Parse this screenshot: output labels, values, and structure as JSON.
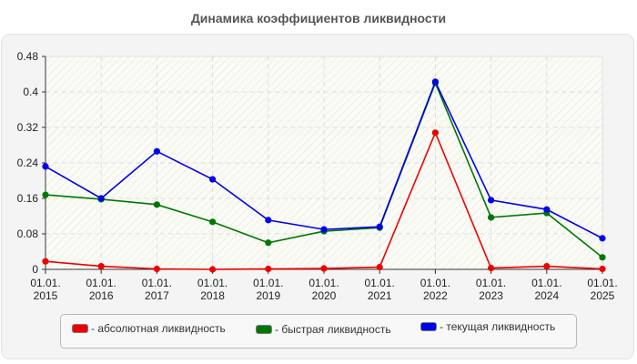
{
  "title": "Динамика коэффициентов ликвидности",
  "legend": [
    {
      "label": "- абсолютная ликвидность",
      "color": "#ee0000"
    },
    {
      "label": "- быстрая ликвидность",
      "color": "#007700"
    },
    {
      "label": "- текущая ликвидность",
      "color": "#0000ee"
    }
  ],
  "chart_data": {
    "type": "line",
    "title": "Динамика коэффициентов ликвидности",
    "xlabel": "",
    "ylabel": "",
    "categories": [
      "01.01.2015",
      "01.01.2016",
      "01.01.2017",
      "01.01.2018",
      "01.01.2019",
      "01.01.2020",
      "01.01.2021",
      "01.01.2022",
      "01.01.2023",
      "01.01.2024",
      "01.01.2025"
    ],
    "x_tick_labels": [
      [
        "01.01.",
        "2015"
      ],
      [
        "01.01.",
        "2016"
      ],
      [
        "01.01.",
        "2017"
      ],
      [
        "01.01.",
        "2018"
      ],
      [
        "01.01.",
        "2019"
      ],
      [
        "01.01.",
        "2020"
      ],
      [
        "01.01.",
        "2021"
      ],
      [
        "01.01.",
        "2022"
      ],
      [
        "01.01.",
        "2023"
      ],
      [
        "01.01.",
        "2024"
      ],
      [
        "01.01.",
        "2025"
      ]
    ],
    "y_ticks": [
      "0",
      "0.08",
      "0.16",
      "0.24",
      "0.32",
      "0.4",
      "0.48"
    ],
    "ylim": [
      0,
      0.48
    ],
    "grid": true,
    "legend_position": "bottom",
    "series": [
      {
        "name": "абсолютная ликвидность",
        "color": "#ee0000",
        "values": [
          0.018,
          0.007,
          0.001,
          0.0,
          0.001,
          0.002,
          0.005,
          0.308,
          0.003,
          0.007,
          0.001
        ]
      },
      {
        "name": "быстрая ликвидность",
        "color": "#007700",
        "values": [
          0.168,
          0.158,
          0.146,
          0.107,
          0.06,
          0.086,
          0.094,
          0.42,
          0.117,
          0.127,
          0.027
        ]
      },
      {
        "name": "текущая ликвидность",
        "color": "#0000ee",
        "values": [
          0.232,
          0.16,
          0.266,
          0.203,
          0.111,
          0.09,
          0.096,
          0.423,
          0.156,
          0.135,
          0.07
        ]
      }
    ]
  }
}
